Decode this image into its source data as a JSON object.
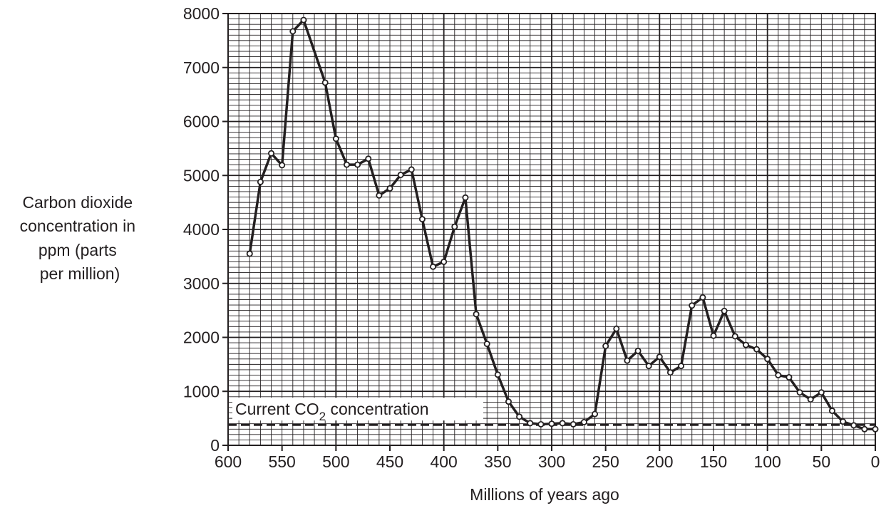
{
  "chart_data": {
    "type": "line",
    "xlabel": "Millions of years ago",
    "ylabel_lines": [
      "Carbon dioxide",
      "concentration in",
      "ppm (parts",
      "per million)"
    ],
    "xlim": [
      600,
      0
    ],
    "ylim": [
      0,
      8000
    ],
    "x_reversed": true,
    "grid": true,
    "x_ticks": [
      "600",
      "550",
      "500",
      "450",
      "400",
      "350",
      "300",
      "250",
      "200",
      "150",
      "100",
      "50",
      "0"
    ],
    "y_ticks": [
      "0",
      "1000",
      "2000",
      "3000",
      "4000",
      "5000",
      "6000",
      "7000",
      "8000"
    ],
    "series": [
      {
        "x": [
          580,
          570,
          560,
          550,
          540,
          530,
          510,
          500,
          490,
          480,
          470,
          460,
          450,
          440,
          430,
          420,
          410,
          400,
          390,
          380,
          370,
          360,
          350,
          340,
          330,
          320,
          310,
          300,
          290,
          280,
          270,
          260,
          250,
          240,
          230,
          220,
          210,
          200,
          190,
          180,
          170,
          160,
          150,
          140,
          130,
          120,
          110,
          100,
          90,
          80,
          70,
          60,
          50,
          40,
          30,
          20,
          10,
          0
        ],
        "y": [
          3550,
          4880,
          5410,
          5190,
          7670,
          7880,
          6720,
          5680,
          5200,
          5200,
          5310,
          4630,
          4760,
          5010,
          5110,
          4190,
          3310,
          3400,
          4050,
          4590,
          2430,
          1880,
          1310,
          810,
          530,
          410,
          390,
          400,
          410,
          390,
          430,
          580,
          1840,
          2160,
          1570,
          1750,
          1470,
          1640,
          1350,
          1470,
          2590,
          2740,
          2030,
          2490,
          2020,
          1860,
          1780,
          1600,
          1300,
          1260,
          980,
          850,
          980,
          640,
          440,
          370,
          300,
          300
        ],
        "color": "#231f20"
      }
    ],
    "reference_line": {
      "label_main": "Current CO",
      "label_sub": "2",
      "label_rest": " concentration",
      "y": 380,
      "style": "dashed"
    }
  }
}
